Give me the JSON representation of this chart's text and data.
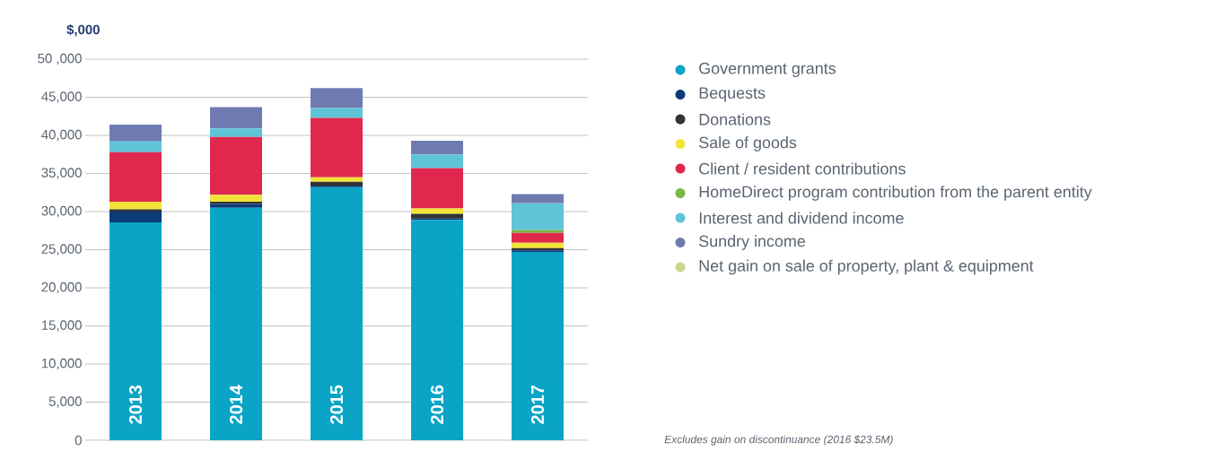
{
  "chart_data": {
    "type": "bar",
    "stacked": true,
    "ylabel": "$,000",
    "categories": [
      "2013",
      "2014",
      "2015",
      "2016",
      "2017"
    ],
    "series": [
      {
        "name": "Government grants",
        "color": "#0aa5c6",
        "values": [
          28600,
          30500,
          33200,
          28900,
          24700
        ]
      },
      {
        "name": "Bequests",
        "color": "#0b3a78",
        "values": [
          1400,
          500,
          200,
          200,
          200
        ]
      },
      {
        "name": "Donations",
        "color": "#333333",
        "values": [
          300,
          300,
          500,
          600,
          300
        ]
      },
      {
        "name": "Sale of goods",
        "color": "#f2e33a",
        "values": [
          1000,
          900,
          600,
          700,
          700
        ]
      },
      {
        "name": "Client / resident contributions",
        "color": "#e0284f",
        "values": [
          6500,
          7600,
          7800,
          5300,
          1300
        ]
      },
      {
        "name": "HomeDirect program contribution from the parent entity",
        "color": "#7ab648",
        "values": [
          0,
          0,
          0,
          0,
          400
        ]
      },
      {
        "name": "Interest and dividend income",
        "color": "#5fc4d8",
        "values": [
          1400,
          1100,
          1300,
          1800,
          3500
        ]
      },
      {
        "name": "Sundry income",
        "color": "#6f7bb0",
        "values": [
          2200,
          2800,
          2600,
          1800,
          1200
        ]
      },
      {
        "name": "Net gain on sale of property, plant & equipment",
        "color": "#c8d88a",
        "values": [
          0,
          0,
          0,
          0,
          0
        ]
      }
    ],
    "ylim": [
      0,
      50000
    ],
    "yticks": [
      {
        "value": 0,
        "label": "0"
      },
      {
        "value": 5000,
        "label": "5,000"
      },
      {
        "value": 10000,
        "label": "10,000"
      },
      {
        "value": 15000,
        "label": "15,000"
      },
      {
        "value": 20000,
        "label": "20,000"
      },
      {
        "value": 25000,
        "label": "25,000"
      },
      {
        "value": 30000,
        "label": "30,000"
      },
      {
        "value": 35000,
        "label": "35,000"
      },
      {
        "value": 40000,
        "label": "40,000"
      },
      {
        "value": 45000,
        "label": "45,000"
      },
      {
        "value": 50000,
        "label": "50 ,000"
      }
    ],
    "grid": "y",
    "legend": "right",
    "annotations": [
      "Excludes gain on discontinuance (2016 $23.5M)"
    ]
  }
}
